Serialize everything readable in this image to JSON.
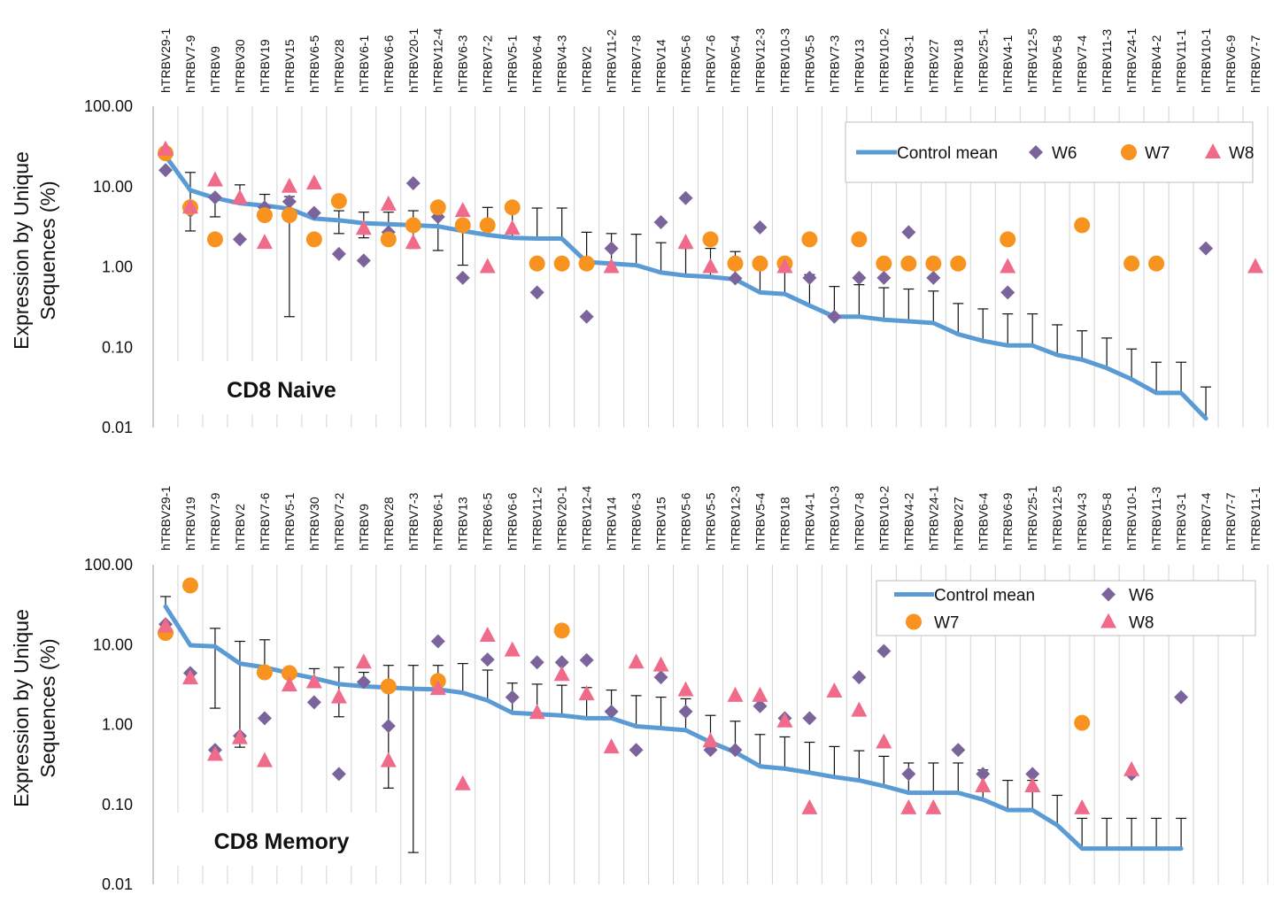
{
  "chart_data": [
    {
      "type": "scatter",
      "panel_label": "CD8 Naive",
      "ylabel_lines": [
        "Expression by Unique",
        "Sequences (%)"
      ],
      "yscale": "log",
      "ylim": [
        0.01,
        100
      ],
      "ytick_labels": [
        "100.00",
        "10.00",
        "1.00",
        "0.10",
        "0.01"
      ],
      "ytick_values": [
        100,
        10,
        1,
        0.1,
        0.01
      ],
      "categories": [
        "hTRBV29-1",
        "hTRBV7-9",
        "hTRBV9",
        "hTRBV30",
        "hTRBV19",
        "hTRBV15",
        "hTRBV6-5",
        "hTRBV28",
        "hTRBV6-1",
        "hTRBV6-6",
        "hTRBV20-1",
        "hTRBV12-4",
        "hTRBV6-3",
        "hTRBV7-2",
        "hTRBV5-1",
        "hTRBV6-4",
        "hTRBV4-3",
        "hTRBV2",
        "hTRBV11-2",
        "hTRBV7-8",
        "hTRBV14",
        "hTRBV5-6",
        "hTRBV7-6",
        "hTRBV5-4",
        "hTRBV12-3",
        "hTRBV10-3",
        "hTRBV5-5",
        "hTRBV7-3",
        "hTRBV13",
        "hTRBV10-2",
        "hTRBV3-1",
        "hTRBV27",
        "hTRBV18",
        "hTRBV25-1",
        "hTRBV4-1",
        "hTRBV12-5",
        "hTRBV5-8",
        "hTRBV7-4",
        "hTRBV11-3",
        "hTRBV24-1",
        "hTRBV4-2",
        "hTRBV11-1",
        "hTRBV10-1",
        "hTRBV6-9",
        "hTRBV7-7"
      ],
      "legend": {
        "position": "top-right",
        "rows": [
          [
            "Control mean",
            "W6",
            "W7",
            "W8"
          ]
        ]
      },
      "series": [
        {
          "name": "Control mean",
          "kind": "line",
          "color": "#5b9bd5",
          "values": [
            24,
            9,
            7.2,
            6.2,
            5.8,
            5.3,
            4,
            3.8,
            3.5,
            3.4,
            3.3,
            3.2,
            2.8,
            2.5,
            2.3,
            2.25,
            2.25,
            1.15,
            1.1,
            1.05,
            0.85,
            0.78,
            0.75,
            0.7,
            0.48,
            0.46,
            0.33,
            0.24,
            0.24,
            0.22,
            0.21,
            0.2,
            0.145,
            0.12,
            0.105,
            0.105,
            0.08,
            0.07,
            0.055,
            0.04,
            0.027,
            0.027,
            0.013,
            null,
            null
          ],
          "error_upper": [
            null,
            15,
            7.2,
            10.5,
            8,
            7.5,
            4.8,
            5,
            4.8,
            4.8,
            5,
            4.8,
            3.2,
            5.5,
            6,
            5.4,
            5.4,
            2.7,
            2.6,
            2.55,
            2,
            1.7,
            1.7,
            1.55,
            1.1,
            1.1,
            0.8,
            0.57,
            0.6,
            0.55,
            0.53,
            0.5,
            0.35,
            0.3,
            0.26,
            0.26,
            0.19,
            0.16,
            0.13,
            0.095,
            0.065,
            0.065,
            0.032,
            null,
            null
          ],
          "error_lower": [
            null,
            2.8,
            4.2,
            null,
            null,
            0.24,
            null,
            2.6,
            2.3,
            null,
            1.7,
            1.6,
            1.05,
            null,
            null,
            null,
            null,
            null,
            null,
            null,
            null,
            null,
            null,
            null,
            null,
            null,
            null,
            null,
            null,
            null,
            null,
            null,
            null,
            null,
            null,
            null,
            null,
            null,
            null,
            null,
            null,
            null,
            null,
            null,
            null
          ]
        },
        {
          "name": "W6",
          "kind": "marker",
          "marker": "diamond",
          "color": "#7b649b",
          "values": [
            16,
            5,
            7.3,
            2.2,
            5.5,
            6.5,
            4.7,
            1.45,
            1.2,
            2.7,
            11,
            4.2,
            0.73,
            null,
            5.6,
            0.48,
            null,
            0.24,
            1.7,
            null,
            3.6,
            7.2,
            null,
            0.72,
            3.1,
            null,
            0.73,
            0.24,
            0.73,
            0.73,
            2.7,
            0.73,
            null,
            null,
            0.48,
            null,
            null,
            null,
            null,
            null,
            null,
            null,
            1.7,
            null,
            null
          ]
        },
        {
          "name": "W7",
          "kind": "marker",
          "marker": "circle",
          "color": "#f7931e",
          "values": [
            26,
            5.5,
            2.2,
            null,
            4.4,
            4.4,
            2.2,
            6.6,
            null,
            2.2,
            3.3,
            5.5,
            3.3,
            3.3,
            5.5,
            1.1,
            1.1,
            1.1,
            null,
            null,
            null,
            null,
            2.2,
            1.1,
            1.1,
            1.1,
            2.2,
            null,
            2.2,
            1.1,
            1.1,
            1.1,
            1.1,
            null,
            2.2,
            null,
            null,
            3.3,
            null,
            1.1,
            1.1,
            null,
            null,
            null,
            null
          ]
        },
        {
          "name": "W8",
          "kind": "marker",
          "marker": "triangle",
          "color": "#f06a8a",
          "values": [
            29,
            5.5,
            12,
            7.2,
            2,
            10,
            11,
            null,
            3,
            6,
            2,
            null,
            5,
            1,
            3,
            null,
            null,
            null,
            1,
            null,
            null,
            2,
            1,
            null,
            null,
            1,
            null,
            null,
            null,
            null,
            null,
            null,
            null,
            null,
            1,
            null,
            null,
            null,
            null,
            null,
            null,
            null,
            null,
            null,
            1
          ]
        }
      ]
    },
    {
      "type": "scatter",
      "panel_label": "CD8 Memory",
      "ylabel_lines": [
        "Expression by Unique",
        "Sequences (%)"
      ],
      "yscale": "log",
      "ylim": [
        0.01,
        100
      ],
      "ytick_labels": [
        "100.00",
        "10.00",
        "1.00",
        "0.10",
        "0.01"
      ],
      "ytick_values": [
        100,
        10,
        1,
        0.1,
        0.01
      ],
      "categories": [
        "hTRBV29-1",
        "hTRBV19",
        "hTRBV7-9",
        "hTRBV2",
        "hTRBV7-6",
        "hTRBV5-1",
        "hTRBV30",
        "hTRBV7-2",
        "hTRBV9",
        "hTRBV28",
        "hTRBV7-3",
        "hTRBV6-1",
        "hTRBV13",
        "hTRBV6-5",
        "hTRBV6-6",
        "hTRBV11-2",
        "hTRBV20-1",
        "hTRBV12-4",
        "hTRBV14",
        "hTRBV6-3",
        "hTRBV15",
        "hTRBV5-6",
        "hTRBV5-5",
        "hTRBV12-3",
        "hTRBV5-4",
        "hTRBV18",
        "hTRBV4-1",
        "hTRBV10-3",
        "hTRBV7-8",
        "hTRBV10-2",
        "hTRBV4-2",
        "hTRBV24-1",
        "hTRBV27",
        "hTRBV6-4",
        "hTRBV6-9",
        "hTRBV25-1",
        "hTRBV12-5",
        "hTRBV4-3",
        "hTRBV5-8",
        "hTRBV10-1",
        "hTRBV11-3",
        "hTRBV3-1",
        "hTRBV7-4",
        "hTRBV7-7",
        "hTRBV11-1"
      ],
      "legend": {
        "position": "top-right",
        "rows": [
          [
            "Control mean",
            "W6"
          ],
          [
            "W7",
            "W8"
          ]
        ]
      },
      "series": [
        {
          "name": "Control mean",
          "kind": "line",
          "color": "#5b9bd5",
          "values": [
            30,
            9.8,
            9.5,
            5.8,
            5.2,
            4.4,
            3.8,
            3.2,
            3,
            2.9,
            2.8,
            2.75,
            2.5,
            2,
            1.4,
            1.35,
            1.3,
            1.2,
            1.2,
            0.95,
            0.9,
            0.85,
            0.6,
            0.45,
            0.3,
            0.28,
            0.25,
            0.22,
            0.2,
            0.17,
            0.14,
            0.14,
            0.14,
            0.115,
            0.085,
            0.085,
            0.055,
            0.028,
            0.028,
            0.028,
            0.028,
            0.028,
            null,
            null,
            null
          ],
          "error_upper": [
            40,
            null,
            16,
            11,
            11.5,
            null,
            5,
            5.2,
            4.5,
            5.5,
            5.5,
            5.5,
            5.8,
            4.8,
            3.3,
            3.2,
            3.1,
            2.9,
            2.7,
            2.3,
            2.2,
            2.1,
            1.3,
            1.1,
            0.75,
            0.7,
            0.6,
            0.53,
            0.47,
            0.4,
            0.33,
            0.33,
            0.33,
            0.27,
            0.2,
            0.2,
            0.13,
            0.067,
            0.067,
            0.067,
            0.067,
            0.067,
            null,
            null,
            null
          ],
          "error_lower": [
            null,
            null,
            1.6,
            0.52,
            null,
            null,
            null,
            1.25,
            null,
            0.16,
            0.025,
            null,
            null,
            null,
            null,
            null,
            null,
            null,
            null,
            null,
            null,
            null,
            null,
            null,
            null,
            null,
            null,
            null,
            null,
            null,
            null,
            null,
            null,
            null,
            null,
            null,
            null,
            null,
            null,
            null,
            null,
            null,
            null,
            null,
            null
          ]
        },
        {
          "name": "W6",
          "kind": "marker",
          "marker": "diamond",
          "color": "#7b649b",
          "values": [
            18,
            4.4,
            0.48,
            0.72,
            1.2,
            null,
            1.9,
            0.24,
            3.4,
            0.96,
            null,
            11,
            null,
            6.5,
            2.2,
            6,
            6,
            6.4,
            1.45,
            0.48,
            3.9,
            1.45,
            0.48,
            0.48,
            1.7,
            1.2,
            1.2,
            null,
            3.9,
            8.3,
            0.24,
            null,
            0.48,
            0.24,
            null,
            0.24,
            null,
            null,
            null,
            0.24,
            null,
            2.2,
            null,
            null,
            null
          ]
        },
        {
          "name": "W7",
          "kind": "marker",
          "marker": "circle",
          "color": "#f7931e",
          "values": [
            14,
            55,
            null,
            null,
            4.5,
            4.4,
            null,
            null,
            null,
            3,
            null,
            3.5,
            null,
            null,
            null,
            null,
            15,
            null,
            null,
            null,
            null,
            null,
            null,
            null,
            null,
            null,
            null,
            null,
            null,
            null,
            null,
            null,
            null,
            null,
            null,
            null,
            null,
            1.05,
            null,
            null,
            null,
            null,
            null,
            null,
            null
          ]
        },
        {
          "name": "W8",
          "kind": "marker",
          "marker": "triangle",
          "color": "#f06a8a",
          "values": [
            17,
            3.8,
            0.42,
            0.68,
            0.35,
            3.1,
            3.4,
            2.2,
            6,
            0.35,
            null,
            2.8,
            0.18,
            13,
            8.5,
            1.4,
            4.2,
            2.4,
            0.52,
            6,
            5.5,
            2.7,
            0.62,
            2.3,
            2.3,
            1.1,
            0.09,
            2.6,
            1.5,
            0.6,
            0.09,
            0.09,
            null,
            0.17,
            null,
            0.17,
            null,
            0.09,
            null,
            0.27,
            null,
            null,
            null,
            null,
            null
          ]
        }
      ]
    }
  ]
}
